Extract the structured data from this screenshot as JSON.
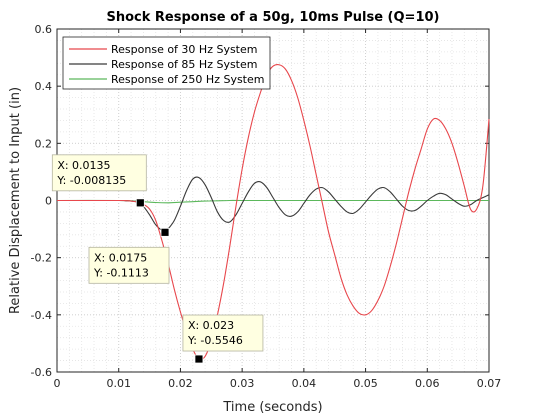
{
  "chart_data": {
    "type": "line",
    "title": "Shock Response of a 50g, 10ms Pulse (Q=10)",
    "xlabel": "Time (seconds)",
    "ylabel": "Relative Displacement to Input (in)",
    "xlim": [
      0,
      0.07
    ],
    "ylim": [
      -0.6,
      0.6
    ],
    "x_ticks": [
      0,
      0.01,
      0.02,
      0.03,
      0.04,
      0.05,
      0.06,
      0.07
    ],
    "x_tick_labels": [
      "0",
      "0.01",
      "0.02",
      "0.03",
      "0.04",
      "0.05",
      "0.06",
      "0.07"
    ],
    "y_ticks": [
      -0.6,
      -0.4,
      -0.2,
      0,
      0.2,
      0.4,
      0.6
    ],
    "y_tick_labels": [
      "-0.6",
      "-0.4",
      "-0.2",
      "0",
      "0.2",
      "0.4",
      "0.6"
    ],
    "grid": true,
    "legend_position": "top-left",
    "series": [
      {
        "name": "Response of 30 Hz System",
        "color": "#e8474c",
        "x": [
          0,
          0.01,
          0.011,
          0.012,
          0.013,
          0.0135,
          0.014,
          0.015,
          0.016,
          0.017,
          0.018,
          0.019,
          0.02,
          0.021,
          0.022,
          0.023,
          0.024,
          0.025,
          0.026,
          0.027,
          0.028,
          0.029,
          0.03,
          0.031,
          0.032,
          0.033,
          0.034,
          0.035,
          0.036,
          0.037,
          0.038,
          0.039,
          0.04,
          0.041,
          0.042,
          0.043,
          0.044,
          0.045,
          0.046,
          0.047,
          0.048,
          0.049,
          0.05,
          0.051,
          0.052,
          0.053,
          0.054,
          0.055,
          0.056,
          0.057,
          0.058,
          0.059,
          0.06,
          0.061,
          0.062,
          0.063,
          0.064,
          0.065,
          0.066,
          0.067,
          0.068,
          0.069,
          0.07
        ],
        "y": [
          0,
          0,
          -0.0003,
          -0.002,
          -0.005,
          -0.0081,
          -0.013,
          -0.03,
          -0.07,
          -0.14,
          -0.22,
          -0.31,
          -0.39,
          -0.46,
          -0.52,
          -0.5546,
          -0.545,
          -0.49,
          -0.4,
          -0.29,
          -0.16,
          -0.02,
          0.11,
          0.22,
          0.31,
          0.38,
          0.44,
          0.47,
          0.475,
          0.46,
          0.42,
          0.36,
          0.28,
          0.19,
          0.09,
          -0.01,
          -0.11,
          -0.19,
          -0.27,
          -0.33,
          -0.37,
          -0.395,
          -0.4,
          -0.385,
          -0.35,
          -0.3,
          -0.23,
          -0.15,
          -0.06,
          0.03,
          0.11,
          0.18,
          0.25,
          0.285,
          0.28,
          0.25,
          0.2,
          0.13,
          0.05,
          -0.03,
          -0.03,
          0.05,
          0.285
        ]
      },
      {
        "name": "Response of 85 Hz System",
        "color": "#3a3a3a",
        "x": [
          0,
          0.01,
          0.011,
          0.012,
          0.013,
          0.0135,
          0.014,
          0.015,
          0.016,
          0.017,
          0.0175,
          0.018,
          0.019,
          0.02,
          0.021,
          0.022,
          0.023,
          0.024,
          0.025,
          0.026,
          0.027,
          0.028,
          0.029,
          0.03,
          0.031,
          0.032,
          0.033,
          0.034,
          0.035,
          0.036,
          0.037,
          0.038,
          0.039,
          0.04,
          0.041,
          0.042,
          0.043,
          0.044,
          0.045,
          0.046,
          0.047,
          0.048,
          0.049,
          0.05,
          0.051,
          0.052,
          0.053,
          0.054,
          0.055,
          0.056,
          0.057,
          0.058,
          0.059,
          0.06,
          0.061,
          0.062,
          0.063,
          0.064,
          0.065,
          0.066,
          0.067,
          0.068,
          0.069,
          0.07
        ],
        "y": [
          0,
          0,
          -0.0005,
          -0.002,
          -0.005,
          -0.0081,
          -0.02,
          -0.05,
          -0.085,
          -0.105,
          -0.1113,
          -0.1,
          -0.07,
          -0.02,
          0.035,
          0.075,
          0.08,
          0.055,
          0.01,
          -0.04,
          -0.07,
          -0.075,
          -0.05,
          -0.01,
          0.03,
          0.06,
          0.065,
          0.045,
          0.01,
          -0.025,
          -0.05,
          -0.055,
          -0.04,
          -0.01,
          0.02,
          0.04,
          0.045,
          0.03,
          0.005,
          -0.02,
          -0.04,
          -0.045,
          -0.03,
          -0.005,
          0.02,
          0.04,
          0.045,
          0.03,
          0.005,
          -0.02,
          -0.035,
          -0.035,
          -0.02,
          0,
          0.015,
          0.025,
          0.02,
          0.005,
          -0.01,
          -0.02,
          -0.015,
          0,
          0.01,
          0.02
        ]
      },
      {
        "name": "Response of 250 Hz System",
        "color": "#5cb85c",
        "x": [
          0,
          0.01,
          0.012,
          0.014,
          0.016,
          0.018,
          0.02,
          0.022,
          0.024,
          0.026,
          0.028,
          0.03,
          0.04,
          0.05,
          0.06,
          0.07
        ],
        "y": [
          0,
          0,
          -0.001,
          -0.004,
          -0.007,
          -0.008,
          -0.006,
          -0.004,
          -0.002,
          -0.001,
          0,
          0,
          0,
          0,
          0,
          0
        ]
      }
    ],
    "datatips": [
      {
        "x_text": "X: 0.0135",
        "y_text": "Y: -0.008135",
        "x": 0.0135,
        "y": -0.008135
      },
      {
        "x_text": "X: 0.0175",
        "y_text": "Y: -0.1113",
        "x": 0.0175,
        "y": -0.1113
      },
      {
        "x_text": "X: 0.023",
        "y_text": "Y: -0.5546",
        "x": 0.023,
        "y": -0.5546
      }
    ]
  }
}
